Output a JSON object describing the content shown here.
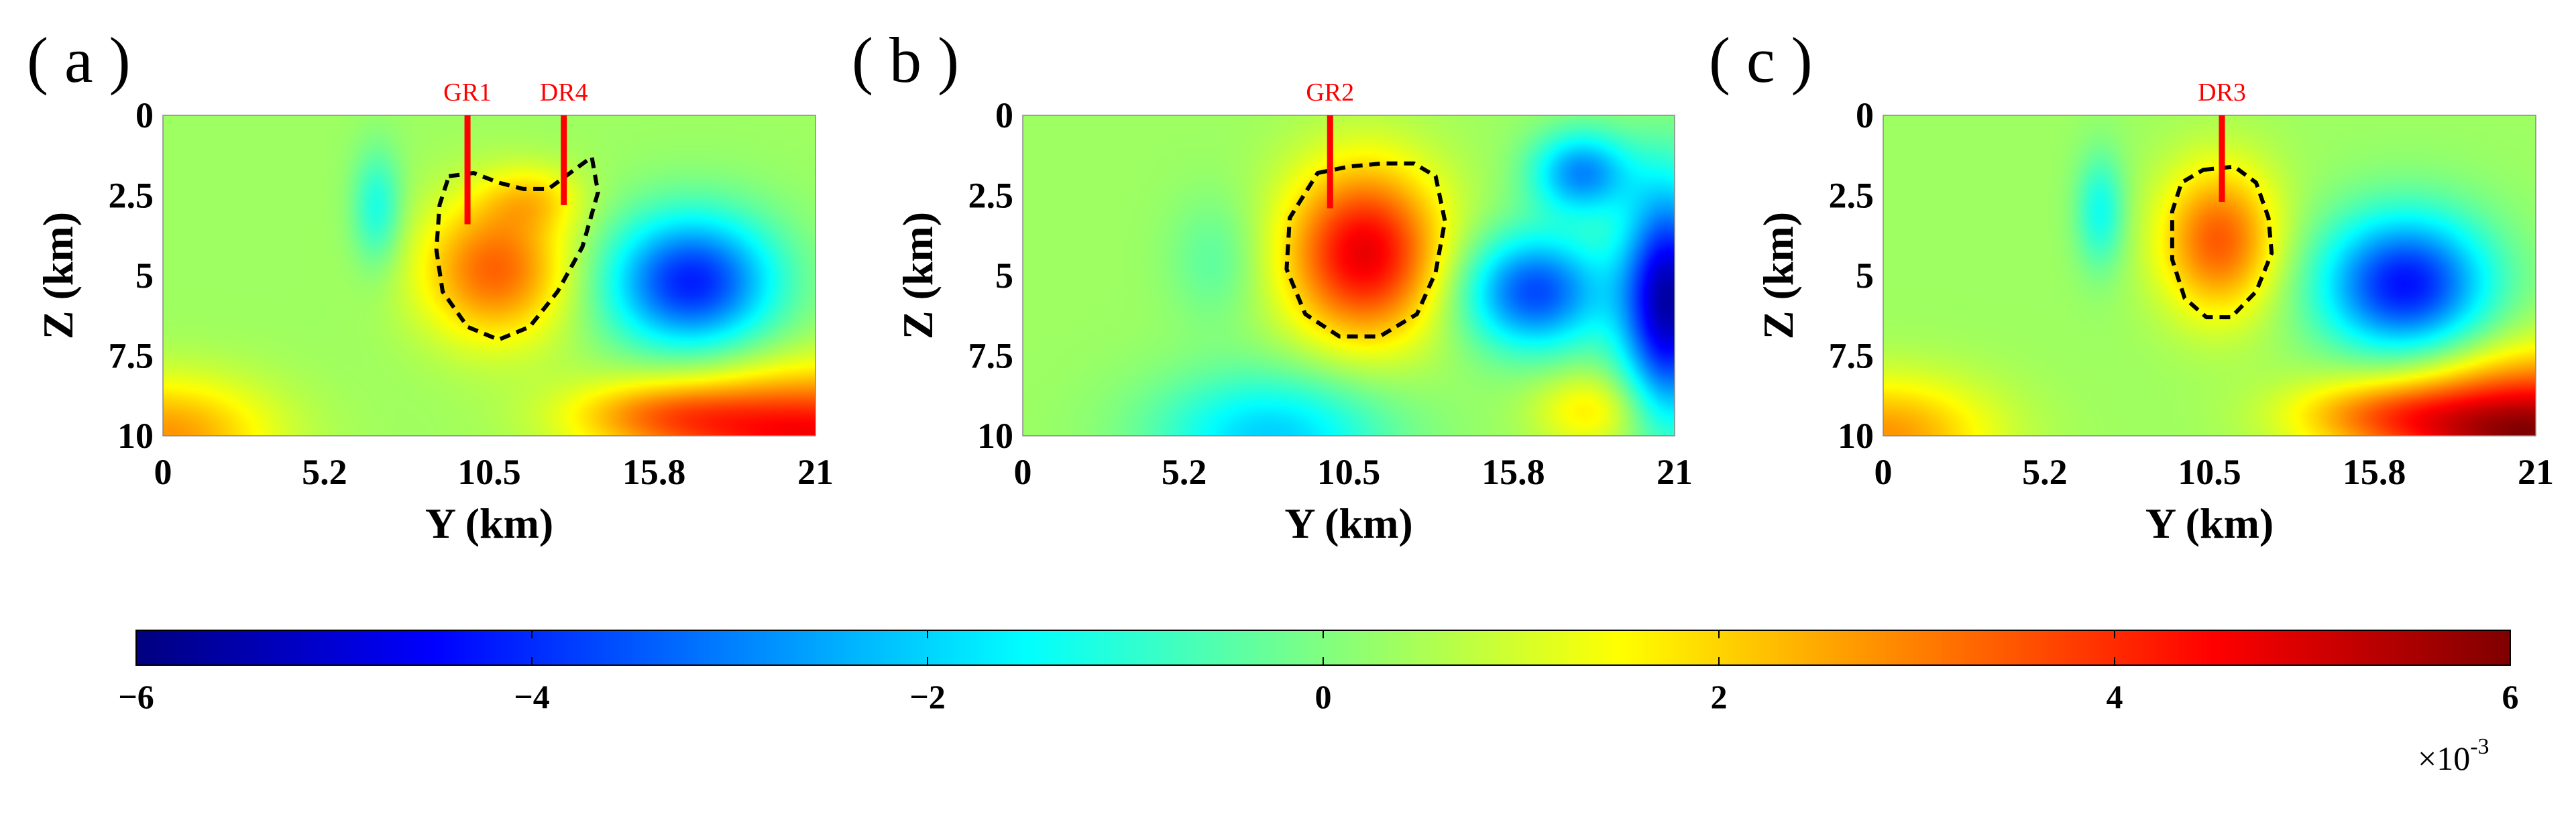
{
  "chart_data": [
    {
      "type": "heatmap",
      "panel_label": "( a )",
      "xlabel": "Y (km)",
      "ylabel": "Z (km)",
      "xlim": [
        0,
        21
      ],
      "ylim": [
        0,
        10
      ],
      "y_reversed": true,
      "xticks": [
        0,
        5.2,
        10.5,
        15.8,
        21
      ],
      "xtick_labels": [
        "0",
        "5.2",
        "10.5",
        "15.8",
        "21"
      ],
      "yticks": [
        0,
        2.5,
        5,
        7.5,
        10
      ],
      "ytick_labels": [
        "0",
        "2.5",
        "5",
        "7.5",
        "10"
      ],
      "wells": [
        {
          "name": "GR1",
          "y": 9.8,
          "z_top": 0,
          "z_bottom": 3.4
        },
        {
          "name": "DR4",
          "y": 12.9,
          "z_top": 0,
          "z_bottom": 2.8
        }
      ],
      "anomalies": [
        {
          "y": 10.7,
          "z": 4.8,
          "ry": 2.4,
          "rz": 2.2,
          "amp": 3.0,
          "sign": "positive"
        },
        {
          "y": 11.9,
          "z": 2.6,
          "ry": 1.6,
          "rz": 1.0,
          "amp": 1.2,
          "sign": "positive"
        },
        {
          "y": 17.0,
          "z": 5.2,
          "ry": 2.7,
          "rz": 2.1,
          "amp": -4.5,
          "sign": "negative"
        },
        {
          "y": 6.9,
          "z": 2.9,
          "ry": 0.8,
          "rz": 1.8,
          "amp": -1.6,
          "sign": "negative"
        },
        {
          "y": 21.0,
          "z": 10.0,
          "ry": 5.5,
          "rz": 2.0,
          "amp": 4.2,
          "sign": "positive"
        },
        {
          "y": 0.0,
          "z": 10.0,
          "ry": 3.5,
          "rz": 1.8,
          "amp": 2.4,
          "sign": "positive"
        },
        {
          "y": 16.0,
          "z": 9.3,
          "ry": 3.0,
          "rz": 1.0,
          "amp": 1.6,
          "sign": "positive"
        }
      ],
      "contour": [
        [
          9.2,
          1.9
        ],
        [
          10.0,
          1.8
        ],
        [
          10.8,
          2.1
        ],
        [
          11.6,
          2.3
        ],
        [
          12.4,
          2.3
        ],
        [
          13.1,
          1.8
        ],
        [
          13.8,
          1.3
        ],
        [
          14.0,
          2.4
        ],
        [
          13.5,
          4.1
        ],
        [
          12.7,
          5.5
        ],
        [
          11.8,
          6.6
        ],
        [
          10.8,
          7.0
        ],
        [
          9.8,
          6.6
        ],
        [
          9.0,
          5.5
        ],
        [
          8.8,
          4.2
        ],
        [
          8.9,
          2.8
        ]
      ]
    },
    {
      "type": "heatmap",
      "panel_label": "( b )",
      "xlabel": "Y (km)",
      "ylabel": "Z (km)",
      "xlim": [
        0,
        21
      ],
      "ylim": [
        0,
        10
      ],
      "y_reversed": true,
      "xticks": [
        0,
        5.2,
        10.5,
        15.8,
        21
      ],
      "xtick_labels": [
        "0",
        "5.2",
        "10.5",
        "15.8",
        "21"
      ],
      "yticks": [
        0,
        2.5,
        5,
        7.5,
        10
      ],
      "ytick_labels": [
        "0",
        "2.5",
        "5",
        "7.5",
        "10"
      ],
      "wells": [
        {
          "name": "GR2",
          "y": 9.9,
          "z_top": 0,
          "z_bottom": 2.9
        }
      ],
      "anomalies": [
        {
          "y": 11.0,
          "z": 4.3,
          "ry": 2.5,
          "rz": 2.7,
          "amp": 4.4,
          "sign": "positive"
        },
        {
          "y": 16.5,
          "z": 5.5,
          "ry": 2.3,
          "rz": 1.8,
          "amp": -4.0,
          "sign": "negative"
        },
        {
          "y": 20.8,
          "z": 5.8,
          "ry": 1.5,
          "rz": 3.5,
          "amp": -5.8,
          "sign": "negative"
        },
        {
          "y": 18.0,
          "z": 1.8,
          "ry": 1.6,
          "rz": 1.3,
          "amp": -3.2,
          "sign": "negative"
        },
        {
          "y": 8.0,
          "z": 10.0,
          "ry": 3.8,
          "rz": 2.0,
          "amp": -2.4,
          "sign": "negative"
        },
        {
          "y": 18.3,
          "z": 9.2,
          "ry": 1.8,
          "rz": 1.2,
          "amp": 1.4,
          "sign": "positive"
        },
        {
          "y": 6.2,
          "z": 4.5,
          "ry": 1.5,
          "rz": 2.0,
          "amp": -0.8,
          "sign": "negative"
        }
      ],
      "contour": [
        [
          9.5,
          1.8
        ],
        [
          10.5,
          1.6
        ],
        [
          11.6,
          1.5
        ],
        [
          12.6,
          1.5
        ],
        [
          13.3,
          1.9
        ],
        [
          13.6,
          3.3
        ],
        [
          13.3,
          4.9
        ],
        [
          12.7,
          6.2
        ],
        [
          11.5,
          6.9
        ],
        [
          10.2,
          6.9
        ],
        [
          9.1,
          6.2
        ],
        [
          8.5,
          4.8
        ],
        [
          8.6,
          3.2
        ]
      ]
    },
    {
      "type": "heatmap",
      "panel_label": "( c )",
      "xlabel": "Y (km)",
      "ylabel": "Z (km)",
      "xlim": [
        0,
        21
      ],
      "ylim": [
        0,
        10
      ],
      "y_reversed": true,
      "xticks": [
        0,
        5.2,
        10.5,
        15.8,
        21
      ],
      "xtick_labels": [
        "0",
        "5.2",
        "10.5",
        "15.8",
        "21"
      ],
      "yticks": [
        0,
        2.5,
        5,
        7.5,
        10
      ],
      "ytick_labels": [
        "0",
        "2.5",
        "5",
        "7.5",
        "10"
      ],
      "wells": [
        {
          "name": "DR3",
          "y": 10.9,
          "z_top": 0,
          "z_bottom": 2.7
        }
      ],
      "anomalies": [
        {
          "y": 10.8,
          "z": 3.9,
          "ry": 1.9,
          "rz": 2.3,
          "amp": 3.1,
          "sign": "positive"
        },
        {
          "y": 16.8,
          "z": 5.3,
          "ry": 2.7,
          "rz": 2.2,
          "amp": -4.7,
          "sign": "negative"
        },
        {
          "y": 7.0,
          "z": 3.0,
          "ry": 0.8,
          "rz": 1.8,
          "amp": -1.7,
          "sign": "negative"
        },
        {
          "y": 21.0,
          "z": 10.0,
          "ry": 5.0,
          "rz": 2.3,
          "amp": 5.6,
          "sign": "positive"
        },
        {
          "y": 0.0,
          "z": 10.0,
          "ry": 3.5,
          "rz": 1.8,
          "amp": 2.4,
          "sign": "positive"
        },
        {
          "y": 16.0,
          "z": 9.3,
          "ry": 3.0,
          "rz": 1.0,
          "amp": 1.6,
          "sign": "positive"
        }
      ],
      "contour": [
        [
          10.3,
          1.7
        ],
        [
          11.3,
          1.6
        ],
        [
          12.0,
          2.1
        ],
        [
          12.4,
          3.2
        ],
        [
          12.5,
          4.3
        ],
        [
          12.0,
          5.5
        ],
        [
          11.2,
          6.3
        ],
        [
          10.4,
          6.3
        ],
        [
          9.7,
          5.7
        ],
        [
          9.3,
          4.5
        ],
        [
          9.3,
          3.0
        ],
        [
          9.6,
          2.1
        ]
      ]
    },
    {
      "type": "colorbar",
      "range": [
        -6,
        6
      ],
      "ticks": [
        -6,
        -4,
        -2,
        0,
        2,
        4,
        6
      ],
      "tick_labels": [
        "−6",
        "−4",
        "−2",
        "0",
        "2",
        "4",
        "6"
      ],
      "multiplier_base": "×10",
      "multiplier_exponent": "-3",
      "colormap": "jet"
    }
  ]
}
